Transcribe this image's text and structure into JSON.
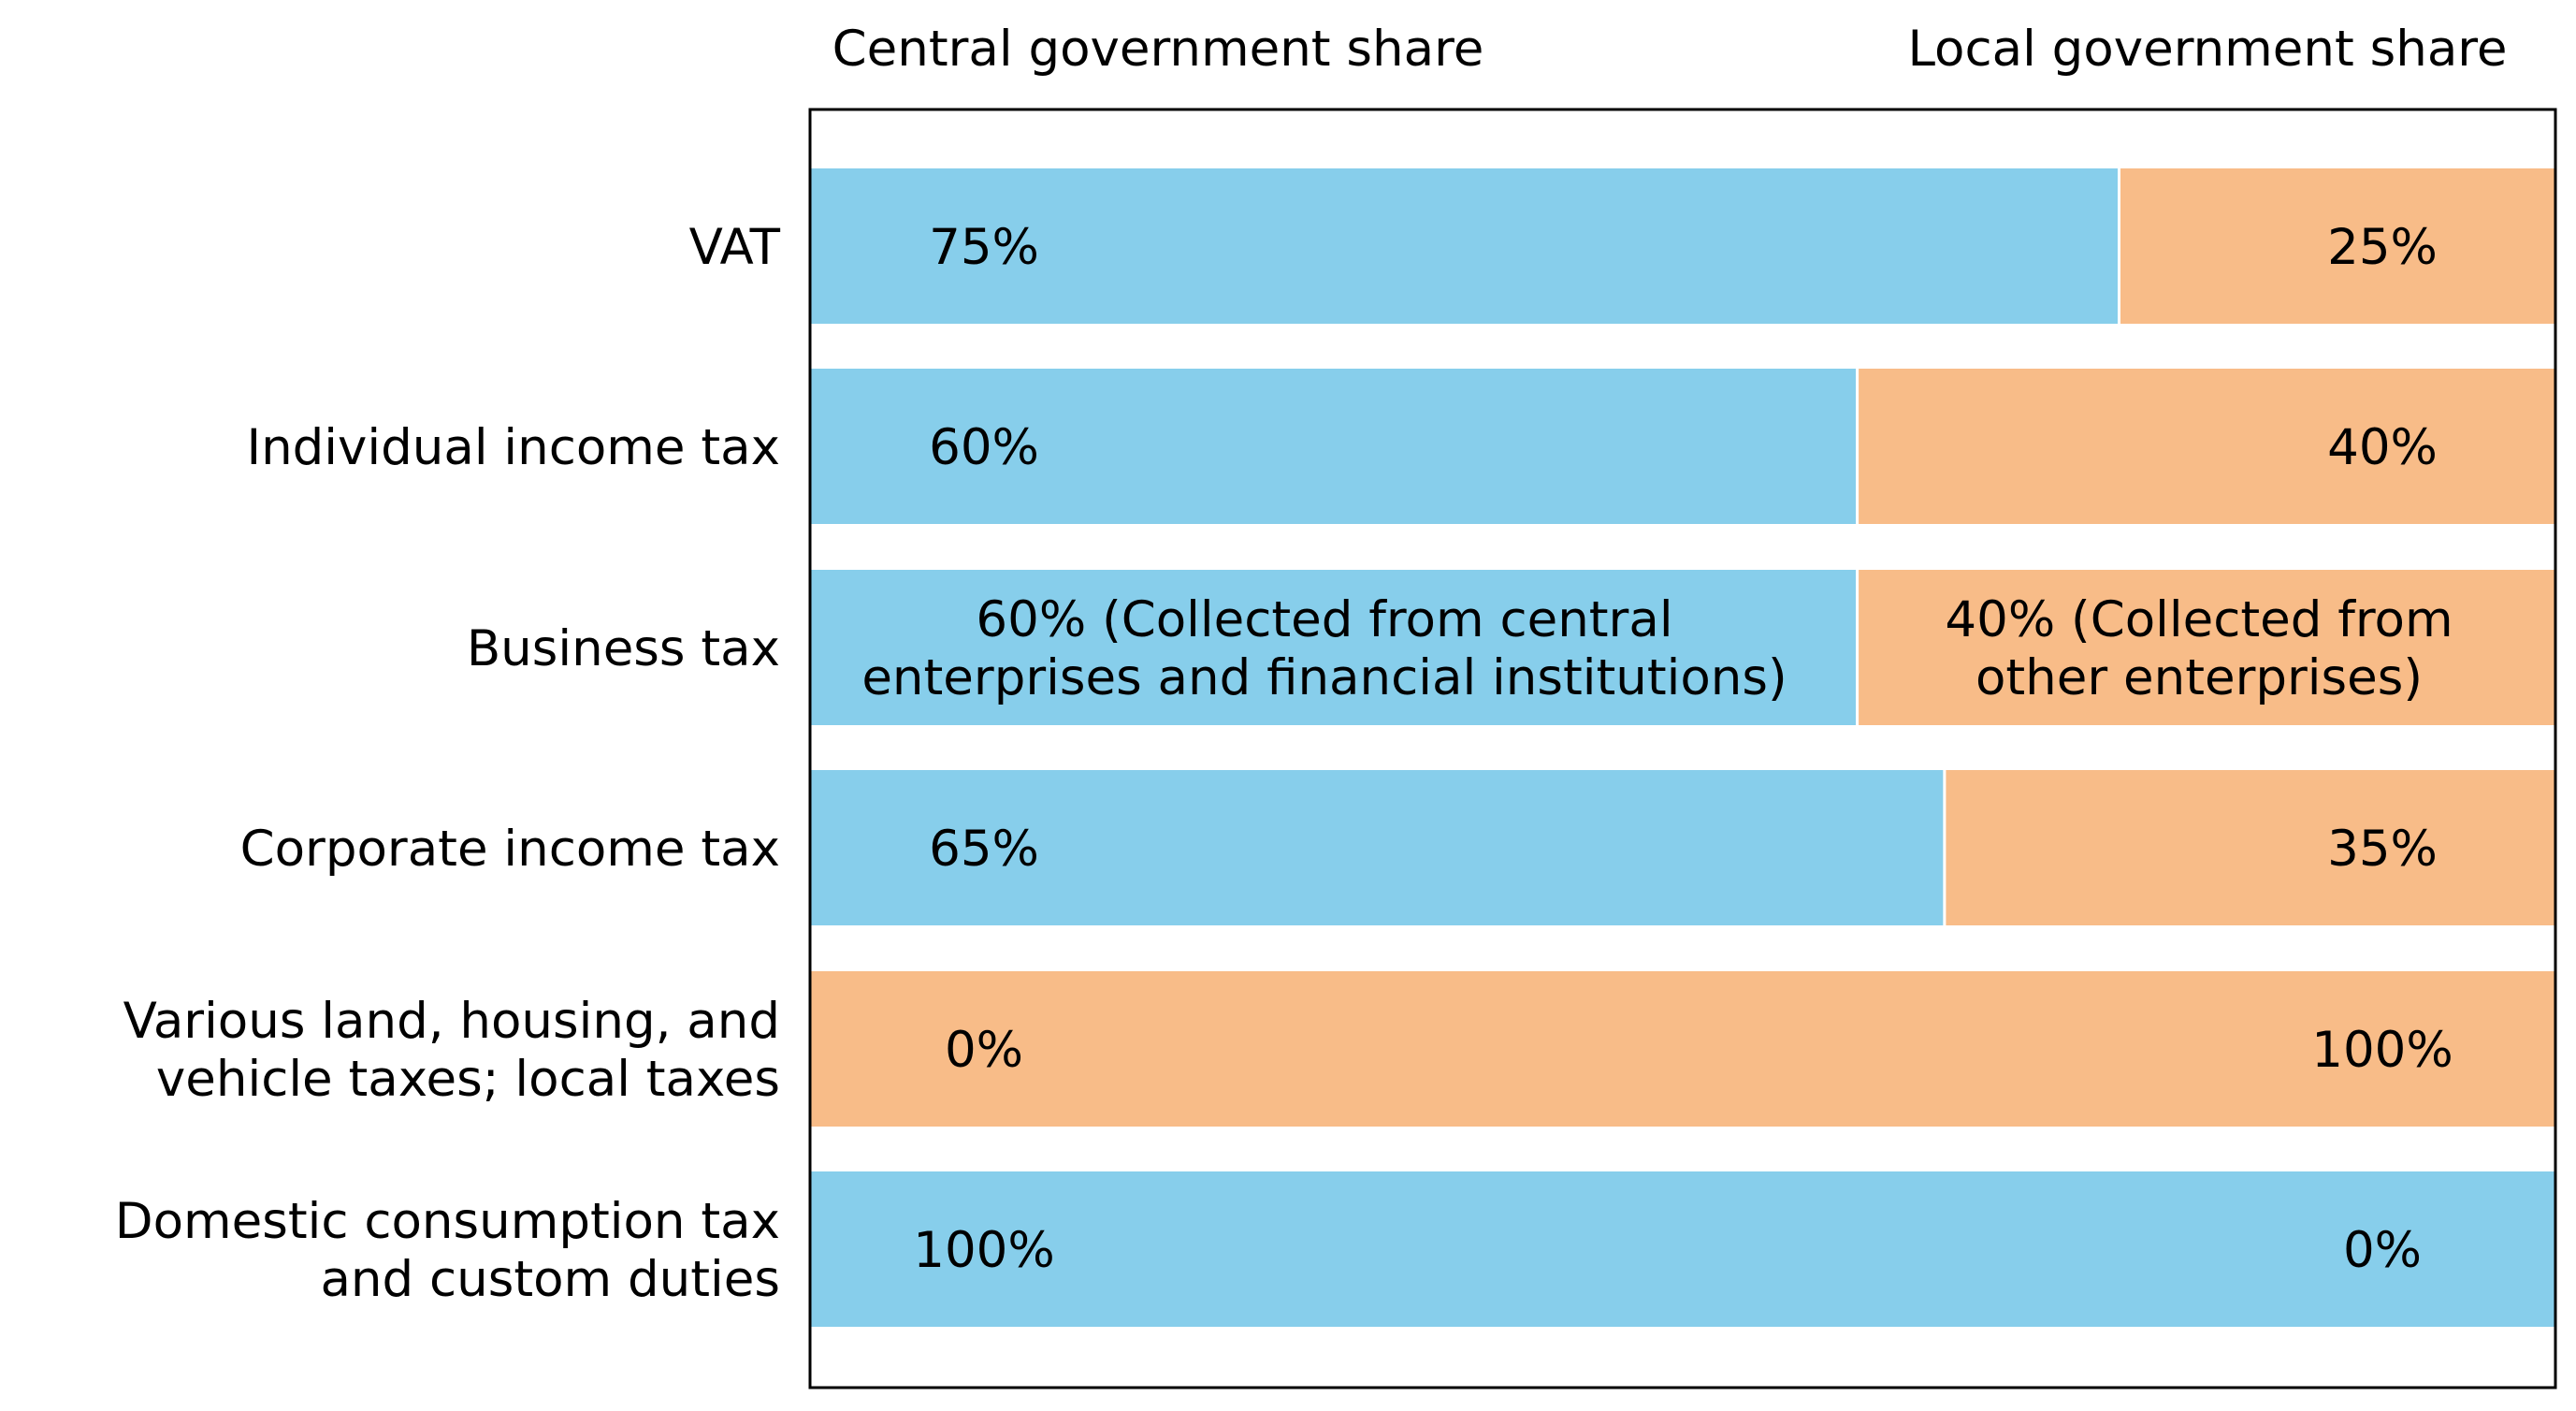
{
  "chart_data": {
    "type": "bar",
    "orientation": "horizontal-stacked",
    "header_left": "Central government share",
    "header_right": "Local government share",
    "xlim": [
      0,
      100
    ],
    "categories": [
      [
        "VAT"
      ],
      [
        "Individual income tax"
      ],
      [
        "Business tax"
      ],
      [
        "Corporate income tax"
      ],
      [
        "Various land, housing, and ",
        "vehicle taxes; local taxes"
      ],
      [
        "Domestic consumption tax ",
        "and custom duties"
      ]
    ],
    "series": [
      {
        "name": "Central government share",
        "color": "#87CEEB",
        "values": [
          75,
          60,
          60,
          65,
          0,
          100
        ]
      },
      {
        "name": "Local government share",
        "color": "#F8BC88",
        "values": [
          25,
          40,
          40,
          35,
          100,
          0
        ]
      }
    ],
    "central_labels": [
      [
        "75%"
      ],
      [
        "60%"
      ],
      [
        "60%  (Collected from central",
        "enterprises and financial institutions)"
      ],
      [
        "65%"
      ],
      [
        "0%"
      ],
      [
        "100%"
      ]
    ],
    "local_labels": [
      [
        "25%"
      ],
      [
        "40%"
      ],
      [
        "40% (Collected from",
        "other enterprises)"
      ],
      [
        "35%"
      ],
      [
        "100%"
      ],
      [
        "0%"
      ]
    ],
    "grid": false
  }
}
